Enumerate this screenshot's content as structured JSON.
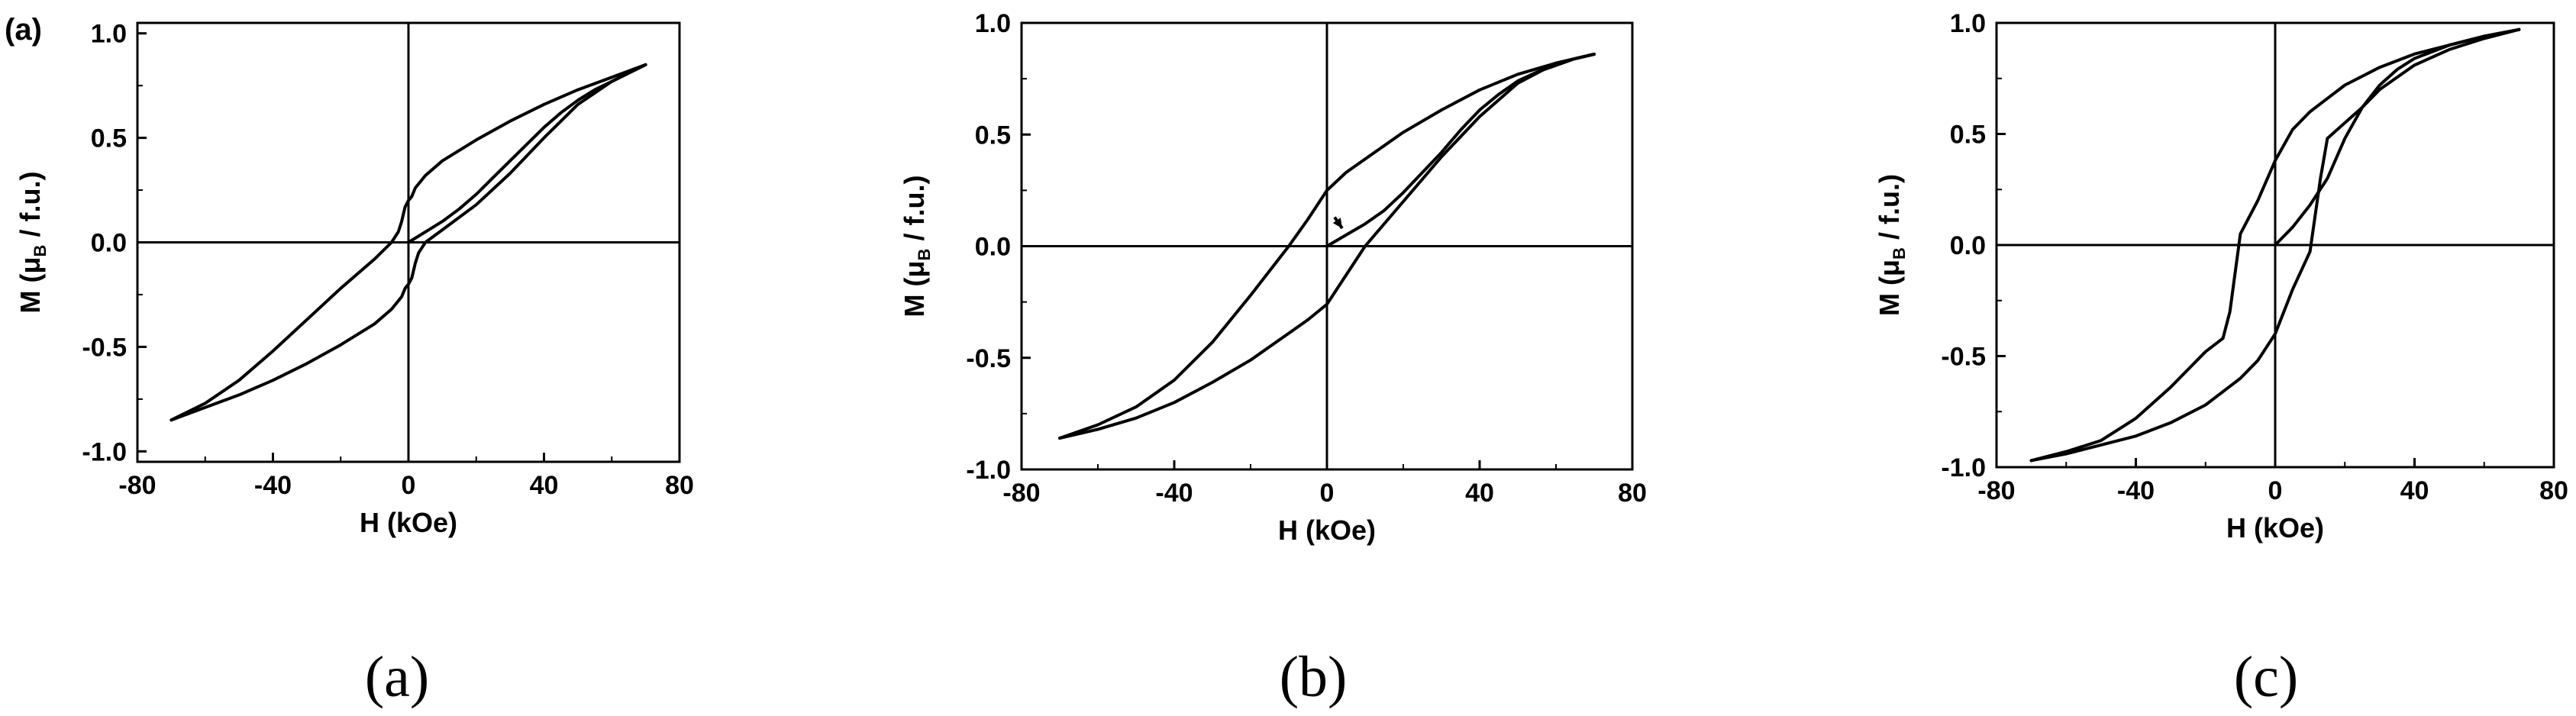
{
  "chart_data": [
    {
      "type": "line",
      "panel_tag": "(a)",
      "caption": "(a)",
      "xlabel": "H (kOe)",
      "ylabel": {
        "prefix": "M (μ",
        "subscript": "B",
        "suffix": " / f.u.)"
      },
      "xlim": [
        -80,
        80
      ],
      "ylim": [
        -1.05,
        1.05
      ],
      "x_ticks": [
        "-80",
        "-40",
        "0",
        "40",
        "80"
      ],
      "y_ticks": [
        "1.0",
        "0.5",
        "0.0",
        "-0.5",
        "-1.0"
      ],
      "grid": false,
      "series": [
        {
          "x": [
            0,
            2,
            5,
            10,
            15,
            20,
            25,
            30,
            35,
            40,
            45,
            50,
            55,
            60,
            65,
            70
          ],
          "y": [
            0.0,
            0.02,
            0.05,
            0.1,
            0.16,
            0.23,
            0.31,
            0.39,
            0.47,
            0.55,
            0.62,
            0.68,
            0.73,
            0.77,
            0.81,
            0.85
          ]
        },
        {
          "x": [
            70,
            60,
            50,
            40,
            30,
            20,
            10,
            5,
            2,
            1,
            0,
            -1,
            -2,
            -3,
            -5,
            -10,
            -20,
            -30,
            -40,
            -50,
            -60,
            -70
          ],
          "y": [
            0.85,
            0.79,
            0.73,
            0.66,
            0.58,
            0.49,
            0.39,
            0.32,
            0.26,
            0.22,
            0.2,
            0.17,
            0.1,
            0.05,
            0.0,
            -0.08,
            -0.22,
            -0.37,
            -0.52,
            -0.66,
            -0.77,
            -0.85
          ]
        },
        {
          "x": [
            -70,
            -60,
            -50,
            -40,
            -30,
            -20,
            -10,
            -5,
            -2,
            -1,
            0,
            1,
            2,
            3,
            5,
            10,
            20,
            30,
            40,
            50,
            60,
            70
          ],
          "y": [
            -0.85,
            -0.79,
            -0.73,
            -0.66,
            -0.58,
            -0.49,
            -0.39,
            -0.32,
            -0.26,
            -0.22,
            -0.2,
            -0.17,
            -0.1,
            -0.05,
            0.0,
            0.06,
            0.18,
            0.33,
            0.5,
            0.66,
            0.77,
            0.85
          ]
        }
      ]
    },
    {
      "type": "line",
      "panel_tag": "",
      "caption": "(b)",
      "xlabel": "H (kOe)",
      "ylabel": {
        "prefix": "M (μ",
        "subscript": "B",
        "suffix": " / f.u.)"
      },
      "xlim": [
        -80,
        80
      ],
      "ylim": [
        -1.0,
        1.0
      ],
      "x_ticks": [
        "-80",
        "-40",
        "0",
        "40",
        "80"
      ],
      "y_ticks": [
        "1.0",
        "0.5",
        "0.0",
        "-0.5",
        "-1.0"
      ],
      "grid": false,
      "series": [
        {
          "x": [
            0,
            5,
            10,
            15,
            20,
            25,
            30,
            35,
            40,
            45,
            50,
            55,
            60,
            65,
            70
          ],
          "y": [
            0.0,
            0.05,
            0.1,
            0.16,
            0.24,
            0.33,
            0.42,
            0.52,
            0.61,
            0.68,
            0.74,
            0.78,
            0.81,
            0.84,
            0.86
          ]
        },
        {
          "x": [
            70,
            60,
            50,
            40,
            30,
            20,
            10,
            5,
            0,
            -5,
            -10,
            -20,
            -30,
            -40,
            -50,
            -60,
            -70
          ],
          "y": [
            0.86,
            0.82,
            0.77,
            0.7,
            0.61,
            0.51,
            0.39,
            0.33,
            0.25,
            0.12,
            0.0,
            -0.22,
            -0.43,
            -0.6,
            -0.72,
            -0.8,
            -0.86
          ]
        },
        {
          "x": [
            -70,
            -60,
            -50,
            -40,
            -30,
            -20,
            -10,
            -5,
            0,
            5,
            10,
            20,
            30,
            40,
            50,
            60,
            70
          ],
          "y": [
            -0.86,
            -0.82,
            -0.77,
            -0.7,
            -0.61,
            -0.51,
            -0.39,
            -0.33,
            -0.26,
            -0.13,
            0.0,
            0.2,
            0.4,
            0.58,
            0.73,
            0.82,
            0.86
          ]
        }
      ],
      "annotations": [
        {
          "type": "arrow",
          "from": [
            2,
            0.13
          ],
          "to": [
            4,
            0.08
          ]
        }
      ]
    },
    {
      "type": "line",
      "panel_tag": "",
      "caption": "(c)",
      "xlabel": "H (kOe)",
      "ylabel": {
        "prefix": "M (μ",
        "subscript": "B",
        "suffix": " / f.u.)"
      },
      "xlim": [
        -80,
        80
      ],
      "ylim": [
        -1.0,
        1.0
      ],
      "x_ticks": [
        "-80",
        "-40",
        "0",
        "40",
        "80"
      ],
      "y_ticks": [
        "1.0",
        "0.5",
        "0.0",
        "-0.5",
        "-1.0"
      ],
      "grid": false,
      "series": [
        {
          "x": [
            0,
            5,
            10,
            15,
            20,
            25,
            30,
            35,
            40,
            50,
            60,
            70
          ],
          "y": [
            0.0,
            0.08,
            0.18,
            0.3,
            0.48,
            0.62,
            0.72,
            0.79,
            0.84,
            0.9,
            0.94,
            0.97
          ]
        },
        {
          "x": [
            70,
            60,
            50,
            40,
            30,
            20,
            10,
            5,
            0,
            -5,
            -10,
            -13,
            -15,
            -20,
            -25,
            -30,
            -40,
            -50,
            -60,
            -70
          ],
          "y": [
            0.97,
            0.94,
            0.9,
            0.86,
            0.8,
            0.72,
            0.6,
            0.52,
            0.38,
            0.2,
            0.05,
            -0.3,
            -0.42,
            -0.48,
            -0.56,
            -0.64,
            -0.78,
            -0.88,
            -0.93,
            -0.97
          ]
        },
        {
          "x": [
            -70,
            -60,
            -50,
            -40,
            -30,
            -20,
            -10,
            -5,
            0,
            5,
            10,
            13,
            15,
            20,
            25,
            30,
            40,
            50,
            60,
            70
          ],
          "y": [
            -0.97,
            -0.94,
            -0.9,
            -0.86,
            -0.8,
            -0.72,
            -0.6,
            -0.52,
            -0.4,
            -0.2,
            -0.03,
            0.3,
            0.48,
            0.55,
            0.62,
            0.7,
            0.81,
            0.88,
            0.93,
            0.97
          ]
        }
      ]
    }
  ]
}
